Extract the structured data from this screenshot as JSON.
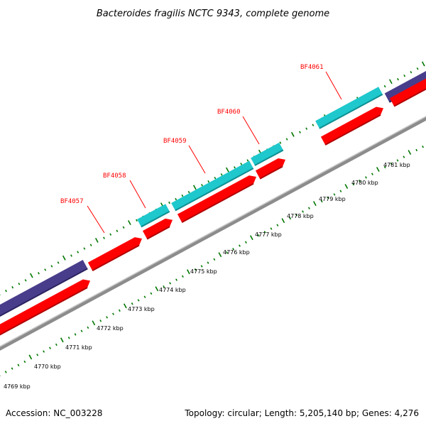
{
  "title": "Bacteroides fragilis NCTC 9343, complete genome",
  "footer": {
    "accession": "Accession: NC_003228",
    "summary": "Topology: circular; Length: 5,205,140 bp; Genes: 4,276"
  },
  "colors": {
    "cds": "#ff0000",
    "cds_dark": "#b00000",
    "gene_cyan": "#1ec8cc",
    "gene_cyan_dark": "#0e8e92",
    "gene_purple": "#483d8b",
    "backbone": "#8c8c8c",
    "tick": "#007700",
    "label": "#ff0000"
  },
  "scale_ticks": [
    {
      "label": "4769 kbp",
      "kbp": 4769
    },
    {
      "label": "4770 kbp",
      "kbp": 4770
    },
    {
      "label": "4771 kbp",
      "kbp": 4771
    },
    {
      "label": "4772 kbp",
      "kbp": 4772
    },
    {
      "label": "4773 kbp",
      "kbp": 4773
    },
    {
      "label": "4774 kbp",
      "kbp": 4774
    },
    {
      "label": "4775 kbp",
      "kbp": 4775
    },
    {
      "label": "4776 kbp",
      "kbp": 4776
    },
    {
      "label": "4777 kbp",
      "kbp": 4777
    },
    {
      "label": "4778 kbp",
      "kbp": 4778
    },
    {
      "label": "4779 kbp",
      "kbp": 4779
    },
    {
      "label": "4780 kbp",
      "kbp": 4780
    },
    {
      "label": "4781 kbp",
      "kbp": 4781
    }
  ],
  "genes": [
    {
      "name": "BF4057"
    },
    {
      "name": "BF4058"
    },
    {
      "name": "BF4059"
    },
    {
      "name": "BF4060"
    },
    {
      "name": "BF4061"
    }
  ]
}
